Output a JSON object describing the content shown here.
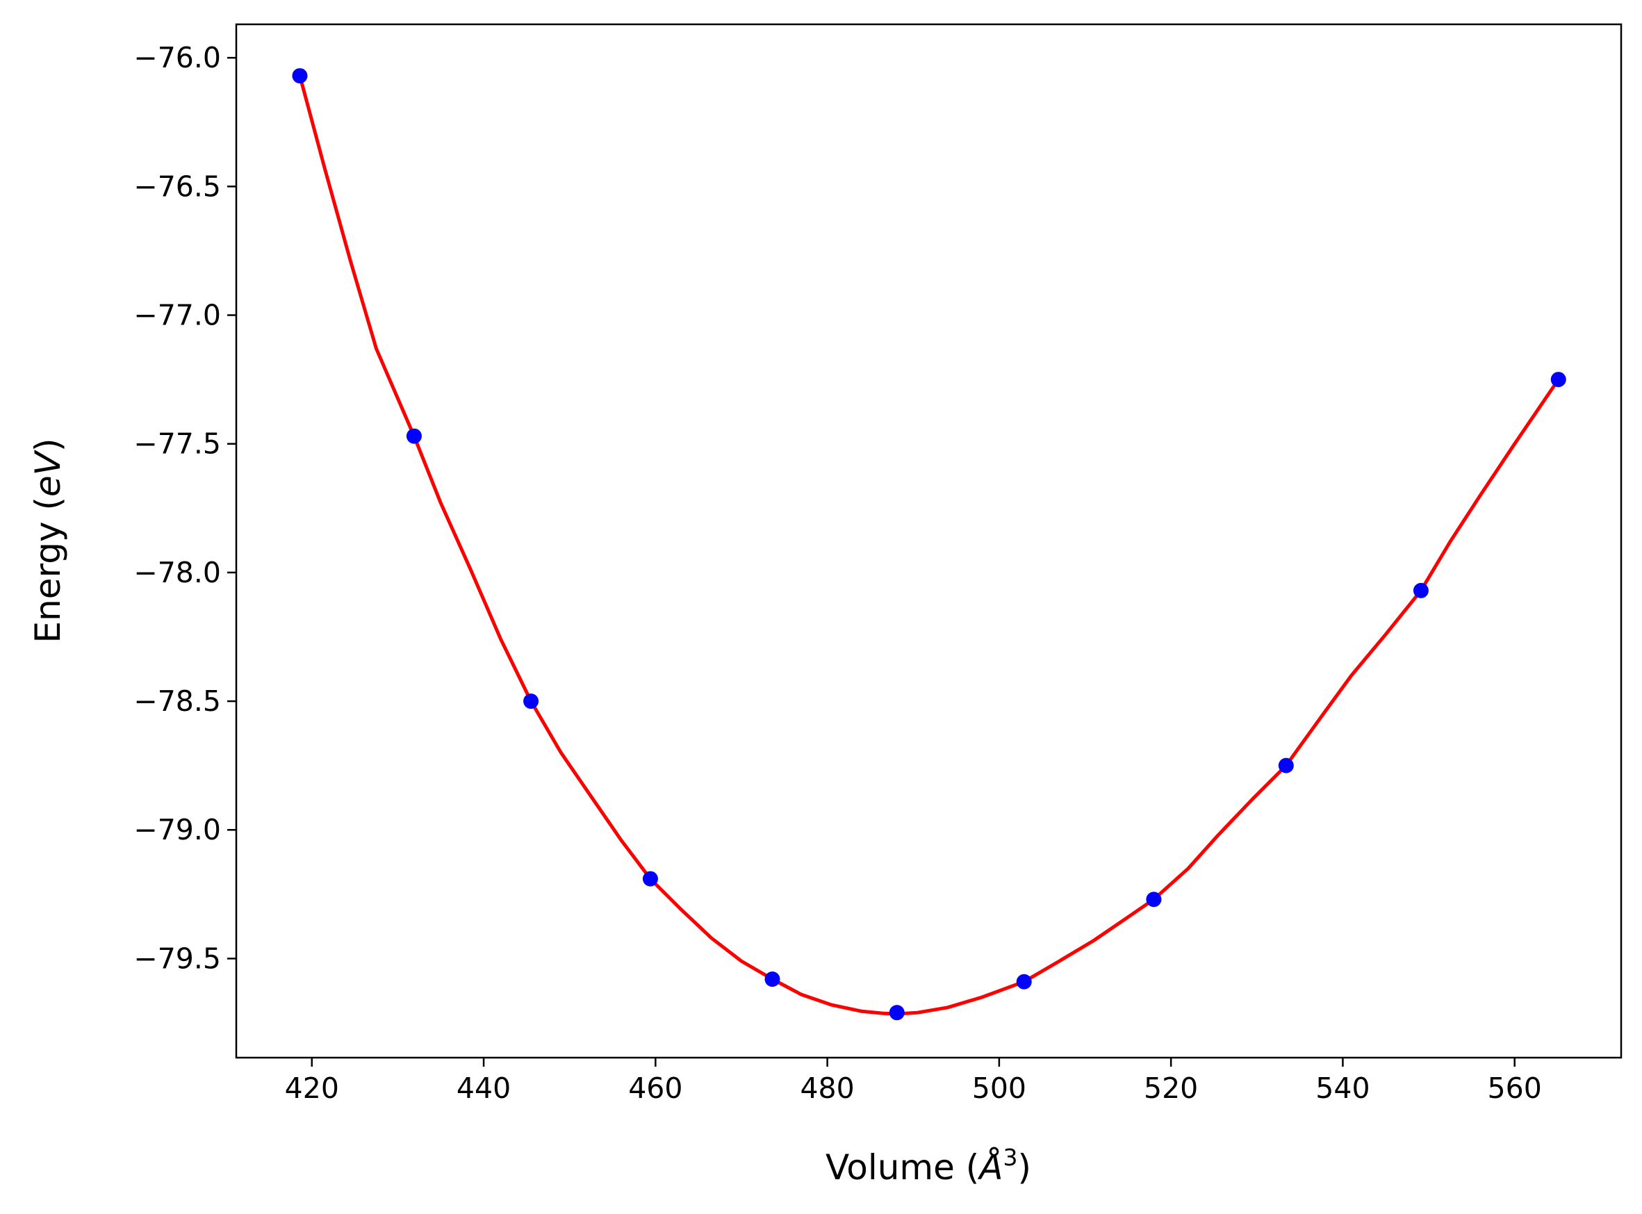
{
  "chart_data": {
    "type": "line",
    "title": "",
    "xlabel": {
      "pre": "Volume (",
      "math": "Å",
      "sup": "3",
      "post": ")"
    },
    "ylabel": {
      "pre": "Energy (",
      "math": "eV",
      "post": ")"
    },
    "xlim": [
      411.2,
      572.4
    ],
    "ylim": [
      -79.885,
      -75.87
    ],
    "xticks": [
      420,
      440,
      460,
      480,
      500,
      520,
      540,
      560
    ],
    "xtick_labels": [
      "420",
      "440",
      "460",
      "480",
      "500",
      "520",
      "540",
      "560"
    ],
    "yticks": [
      -76.0,
      -76.5,
      -77.0,
      -77.5,
      -78.0,
      -78.5,
      -79.0,
      -79.5
    ],
    "ytick_labels": [
      "−76.0",
      "−76.5",
      "−77.0",
      "−77.5",
      "−78.0",
      "−78.5",
      "−79.0",
      "−79.5"
    ],
    "grid": false,
    "series": [
      {
        "kind": "scatter",
        "color": "#0000ff",
        "x": [
          418.6,
          431.9,
          445.5,
          459.4,
          473.6,
          488.1,
          502.9,
          518.0,
          533.4,
          549.1,
          565.1
        ],
        "y": [
          -76.07,
          -77.47,
          -78.5,
          -79.19,
          -79.58,
          -79.71,
          -79.59,
          -79.27,
          -78.75,
          -78.07,
          -77.25
        ]
      },
      {
        "kind": "line",
        "color": "#ff0000",
        "x": [
          418.6,
          421.5,
          424.5,
          427.5,
          431.9,
          435.0,
          438.5,
          442.0,
          445.5,
          449.0,
          452.5,
          456.0,
          459.4,
          463.0,
          466.5,
          470.0,
          473.6,
          477.0,
          480.5,
          484.0,
          486.5,
          488.1,
          490.5,
          494.0,
          498.0,
          502.9,
          507.0,
          511.0,
          514.5,
          518.0,
          522.0,
          525.5,
          529.5,
          533.4,
          537.5,
          541.0,
          545.0,
          549.1,
          552.5,
          556.0,
          560.0,
          565.1
        ],
        "y": [
          -76.07,
          -76.43,
          -76.79,
          -77.13,
          -77.47,
          -77.73,
          -77.99,
          -78.26,
          -78.5,
          -78.7,
          -78.87,
          -79.04,
          -79.19,
          -79.31,
          -79.42,
          -79.51,
          -79.58,
          -79.64,
          -79.68,
          -79.705,
          -79.713,
          -79.715,
          -79.71,
          -79.69,
          -79.65,
          -79.59,
          -79.51,
          -79.43,
          -79.35,
          -79.27,
          -79.15,
          -79.02,
          -78.88,
          -78.75,
          -78.56,
          -78.4,
          -78.24,
          -78.07,
          -77.88,
          -77.7,
          -77.5,
          -77.25
        ]
      }
    ]
  }
}
